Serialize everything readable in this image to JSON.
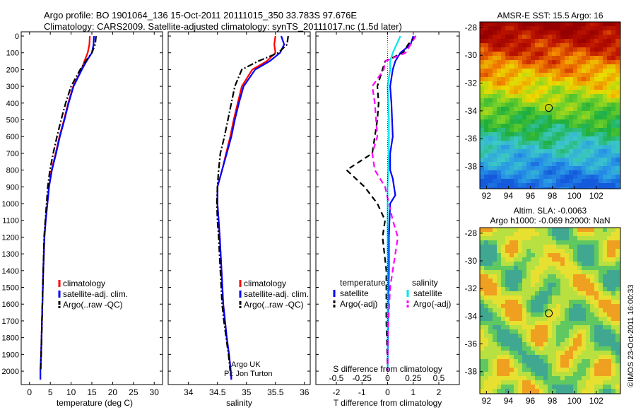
{
  "title_line1": "Argo profile: BO 1901064_136 15-Oct-2011 20111015_350 33.783S 97.676E",
  "title_line2": "Climatology: CARS2009. Satellite-adjusted climatology: synTS_20111017.nc (1.5d later)",
  "credit": "©IMOS 23-Oct-2011 16:00:33",
  "colors": {
    "climatology": "#ff0000",
    "satellite": "#0000ff",
    "argo": "#000000",
    "sat_s": "#00e5ee",
    "argo_s": "#ff00ff"
  },
  "chart_data": [
    {
      "type": "line",
      "xlabel": "temperature (deg C)",
      "xlim": [
        -2,
        32
      ],
      "xticks": [
        "0",
        "5",
        "10",
        "15",
        "20",
        "25",
        "30"
      ],
      "xtick_values": [
        0,
        5,
        10,
        15,
        20,
        25,
        30
      ],
      "ylim": [
        0,
        2080
      ],
      "yticks": [
        "0",
        "100",
        "200",
        "300",
        "400",
        "500",
        "600",
        "700",
        "800",
        "900",
        "1000",
        "1100",
        "1200",
        "1300",
        "1400",
        "1500",
        "1600",
        "1700",
        "1800",
        "1900",
        "2000"
      ],
      "ytick_values": [
        0,
        100,
        200,
        300,
        400,
        500,
        600,
        700,
        800,
        900,
        1000,
        1100,
        1200,
        1300,
        1400,
        1500,
        1600,
        1700,
        1800,
        1900,
        2000
      ],
      "legend": [
        "climatology",
        "satellite-adj. clim.",
        "Argo(..raw -QC)"
      ],
      "series": [
        {
          "name": "climatology",
          "style": "solid",
          "color": "#ff0000",
          "x": [
            14.5,
            14.4,
            14.0,
            13.2,
            12.5,
            10.5,
            9.3,
            8.3,
            7.2,
            6.3,
            5.3,
            4.7,
            4.3,
            3.9,
            3.6,
            3.3,
            3.1,
            2.9,
            2.8,
            2.6,
            2.6
          ],
          "y": [
            0,
            50,
            100,
            150,
            200,
            300,
            400,
            500,
            600,
            700,
            800,
            900,
            1000,
            1100,
            1200,
            1400,
            1600,
            1800,
            1900,
            2000,
            2050
          ]
        },
        {
          "name": "satellite-adj. clim.",
          "style": "solid",
          "color": "#0000ff",
          "x": [
            15.5,
            15.4,
            15.0,
            13.7,
            12.6,
            10.6,
            9.4,
            8.4,
            7.3,
            6.4,
            5.4,
            4.7,
            4.3,
            3.9,
            3.6,
            3.3,
            3.1,
            2.9,
            2.8,
            2.6,
            2.6
          ],
          "y": [
            0,
            50,
            100,
            150,
            200,
            300,
            400,
            500,
            600,
            700,
            800,
            900,
            1000,
            1100,
            1200,
            1400,
            1600,
            1800,
            1900,
            2000,
            2050
          ]
        },
        {
          "name": "Argo(..raw -QC)",
          "style": "dashdot",
          "color": "#000000",
          "x": [
            16.0,
            15.8,
            15.0,
            13.5,
            12.2,
            10.0,
            8.7,
            7.6,
            6.6,
            5.7,
            4.9,
            4.4,
            4.1,
            3.8,
            3.5,
            3.3,
            3.1,
            2.9,
            2.8,
            2.7
          ],
          "y": [
            0,
            50,
            100,
            150,
            200,
            300,
            400,
            500,
            600,
            700,
            800,
            900,
            1000,
            1100,
            1200,
            1400,
            1600,
            1800,
            1900,
            2000
          ]
        }
      ]
    },
    {
      "type": "line",
      "xlabel": "salinity",
      "xlim": [
        33.65,
        36.1
      ],
      "xticks": [
        "34",
        "34.5",
        "35",
        "35.5",
        "36"
      ],
      "xtick_values": [
        34,
        34.5,
        35,
        35.5,
        36
      ],
      "ylim": [
        0,
        2080
      ],
      "legend": [
        "climatology",
        "satellite-adj. clim.",
        "Argo(..raw -QC)"
      ],
      "annotation": [
        "Argo UK",
        "PI: Jon Turton"
      ],
      "series": [
        {
          "name": "climatology",
          "style": "solid",
          "color": "#ff0000",
          "x": [
            35.5,
            35.48,
            35.5,
            35.35,
            35.1,
            34.92,
            34.85,
            34.78,
            34.72,
            34.65,
            34.58,
            34.5,
            34.5,
            34.52,
            34.54,
            34.57,
            34.6,
            34.63,
            34.66,
            34.7,
            34.73,
            34.74
          ],
          "y": [
            0,
            50,
            100,
            150,
            200,
            300,
            400,
            500,
            600,
            700,
            800,
            900,
            1000,
            1100,
            1200,
            1400,
            1600,
            1700,
            1800,
            1900,
            2000,
            2050
          ]
        },
        {
          "name": "satellite-adj. clim.",
          "style": "solid",
          "color": "#0000ff",
          "x": [
            35.6,
            35.65,
            35.58,
            35.4,
            35.15,
            34.95,
            34.87,
            34.8,
            34.74,
            34.66,
            34.58,
            34.5,
            34.5,
            34.52,
            34.54,
            34.57,
            34.6,
            34.63,
            34.66,
            34.7,
            34.73,
            34.74
          ],
          "y": [
            0,
            50,
            100,
            150,
            200,
            300,
            400,
            500,
            600,
            700,
            800,
            900,
            1000,
            1100,
            1200,
            1400,
            1600,
            1700,
            1800,
            1900,
            2000,
            2050
          ]
        },
        {
          "name": "Argo(..raw -QC)",
          "style": "dashdot",
          "color": "#000000",
          "x": [
            35.72,
            35.7,
            35.55,
            35.2,
            34.92,
            34.8,
            34.74,
            34.68,
            34.62,
            34.55,
            34.52,
            34.5,
            34.49,
            34.5,
            34.52,
            34.55,
            34.58,
            34.61,
            34.65,
            34.69,
            34.72
          ],
          "y": [
            0,
            50,
            100,
            150,
            200,
            300,
            400,
            500,
            600,
            700,
            800,
            900,
            1000,
            1100,
            1200,
            1400,
            1600,
            1700,
            1800,
            1900,
            2000
          ]
        }
      ]
    },
    {
      "type": "line",
      "xlabel": "T difference from climatology",
      "xlabel2": "S difference from climatology",
      "xlim": [
        -2.8,
        2.8
      ],
      "xticks": [
        "-2",
        "-1",
        "0",
        "1",
        "2"
      ],
      "xtick_values": [
        -2,
        -1,
        0,
        1,
        2
      ],
      "xticks2": [
        "-0.5",
        "-0.25",
        "0",
        "0.25",
        "0.5"
      ],
      "xtick2_values": [
        -2,
        -1,
        0,
        1,
        2
      ],
      "ylim": [
        0,
        2080
      ],
      "legend_titles": [
        "temperature",
        "salinity"
      ],
      "legend": [
        "satellite",
        "Argo(-adj)",
        "satellite",
        "Argo(-adj)"
      ],
      "series": [
        {
          "name": "satellite",
          "quantity": "temperature",
          "style": "solid",
          "color": "#0000ff",
          "x": [
            1.0,
            0.9,
            0.5,
            0.3,
            0.2,
            0.1,
            0.15,
            0.2,
            0.1,
            0.1,
            0.2,
            0.3,
            0.1,
            0.05,
            0.05,
            0.02,
            0.0
          ],
          "y": [
            0,
            50,
            100,
            150,
            200,
            300,
            400,
            600,
            700,
            800,
            850,
            950,
            1000,
            1200,
            1400,
            1700,
            2000
          ]
        },
        {
          "name": "Argo(-adj)",
          "quantity": "temperature",
          "style": "dashed",
          "color": "#000000",
          "x": [
            1.1,
            0.8,
            0.6,
            -0.1,
            -0.2,
            -0.4,
            -0.35,
            -0.4,
            -0.6,
            -1.6,
            -0.9,
            -0.4,
            -0.1,
            -0.2,
            -0.05,
            -0.05,
            0.0
          ],
          "y": [
            0,
            50,
            100,
            150,
            200,
            300,
            400,
            500,
            700,
            800,
            900,
            1000,
            1100,
            1200,
            1400,
            1700,
            2000
          ]
        },
        {
          "name": "satellite",
          "quantity": "salinity",
          "style": "solid",
          "color": "#00e5ee",
          "x": [
            0.5,
            0.35,
            0.2,
            0.1,
            0.1,
            0.0,
            0.05,
            0.05,
            0.0,
            0.0,
            0.0,
            0.0,
            0.0,
            0.0
          ],
          "y": [
            0,
            50,
            100,
            150,
            200,
            300,
            500,
            700,
            900,
            1100,
            1300,
            1500,
            1700,
            2000
          ]
        },
        {
          "name": "Argo(-adj)",
          "quantity": "salinity",
          "style": "dashed",
          "color": "#ff00ff",
          "x": [
            1.1,
            0.9,
            0.7,
            -0.1,
            -0.15,
            -0.6,
            -0.5,
            -0.45,
            -0.4,
            -0.6,
            -0.5,
            -0.1,
            0.2,
            0.4,
            0.3,
            0.1,
            0.0,
            0.0
          ],
          "y": [
            0,
            50,
            100,
            150,
            200,
            300,
            400,
            500,
            600,
            700,
            800,
            900,
            1100,
            1200,
            1300,
            1500,
            1800,
            2000
          ]
        }
      ]
    },
    {
      "type": "heatmap",
      "title": "AMSR-E SST: 15.5 Argo: 16",
      "xticks": [
        "92",
        "94",
        "96",
        "98",
        "100",
        "102"
      ],
      "xtick_values": [
        92,
        94,
        96,
        98,
        100,
        102
      ],
      "yticks": [
        "-28",
        "-30",
        "-32",
        "-34",
        "-36",
        "-38"
      ],
      "ytick_values": [
        -28,
        -30,
        -32,
        -34,
        -36,
        -38
      ],
      "xlim": [
        91.4,
        104.2
      ],
      "ylim": [
        -39.6,
        -27.6
      ],
      "marker": {
        "lon": 97.676,
        "lat": -33.783
      }
    },
    {
      "type": "heatmap",
      "title": "Altim. SLA: -0.0063",
      "subtitle": "Argo h1000: -0.069 h2000: NaN",
      "xticks": [
        "92",
        "94",
        "96",
        "98",
        "100",
        "102"
      ],
      "xtick_values": [
        92,
        94,
        96,
        98,
        100,
        102
      ],
      "yticks": [
        "-28",
        "-30",
        "-32",
        "-34",
        "-36",
        "-38"
      ],
      "ytick_values": [
        -28,
        -30,
        -32,
        -34,
        -36,
        -38
      ],
      "xlim": [
        91.4,
        104.2
      ],
      "ylim": [
        -39.6,
        -27.6
      ],
      "marker": {
        "lon": 97.676,
        "lat": -33.783
      }
    }
  ]
}
